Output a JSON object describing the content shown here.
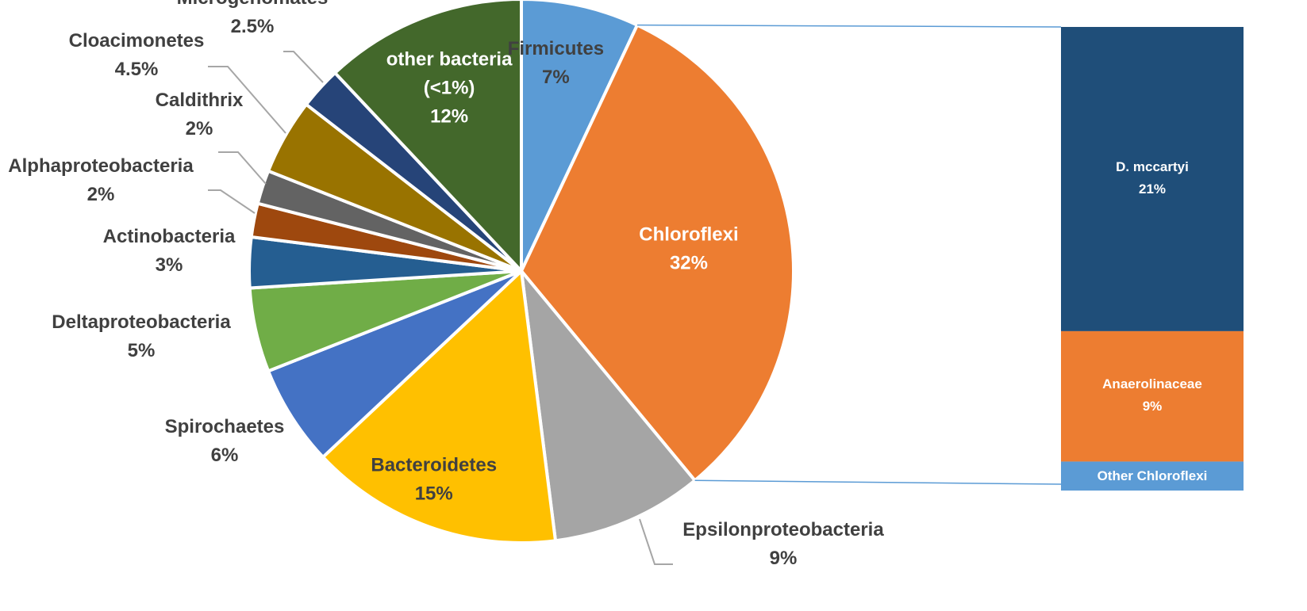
{
  "chart_data": {
    "type": "pie",
    "title": "",
    "series": [
      {
        "type": "pie",
        "slices": [
          {
            "label": "Firmicutes",
            "value": 7,
            "display": "7%",
            "color": "#5b9bd5"
          },
          {
            "label": "Chloroflexi",
            "value": 32,
            "display": "32%",
            "color": "#ed7d31"
          },
          {
            "label": "Epsilonproteobacteria",
            "value": 9,
            "display": "9%",
            "color": "#a5a5a5"
          },
          {
            "label": "Bacteroidetes",
            "value": 15,
            "display": "15%",
            "color": "#ffc000"
          },
          {
            "label": "Spirochaetes",
            "value": 6,
            "display": "6%",
            "color": "#4472c4"
          },
          {
            "label": "Deltaproteobacteria",
            "value": 5,
            "display": "5%",
            "color": "#70ad47"
          },
          {
            "label": "Actinobacteria",
            "value": 3,
            "display": "3%",
            "color": "#255e91"
          },
          {
            "label": "Alphaproteobacteria",
            "value": 2,
            "display": "2%",
            "color": "#9e480e"
          },
          {
            "label": "Caldithrix",
            "value": 2,
            "display": "2%",
            "color": "#636363"
          },
          {
            "label": "Cloacimonetes",
            "value": 4.5,
            "display": "4.5%",
            "color": "#997300"
          },
          {
            "label": "Microgenomates",
            "value": 2.5,
            "display": "2.5%",
            "color": "#264478"
          },
          {
            "label": "other bacteria (<1%)",
            "label_lines": [
              "other bacteria",
              "(<1%)"
            ],
            "value": 12,
            "display": "12%",
            "color": "#43682b"
          }
        ]
      },
      {
        "type": "stacked_bar",
        "parent": "Chloroflexi",
        "segments": [
          {
            "label": "D. mccartyi",
            "value": 21,
            "display": "21%",
            "color": "#1f4e79"
          },
          {
            "label": "Anaerolinaceae",
            "value": 9,
            "display": "9%",
            "color": "#ed7d31"
          },
          {
            "label": "Other Chloroflexi",
            "value": 2,
            "display": "",
            "color": "#5b9bd5"
          }
        ]
      }
    ],
    "legend": "none",
    "grid": false
  }
}
